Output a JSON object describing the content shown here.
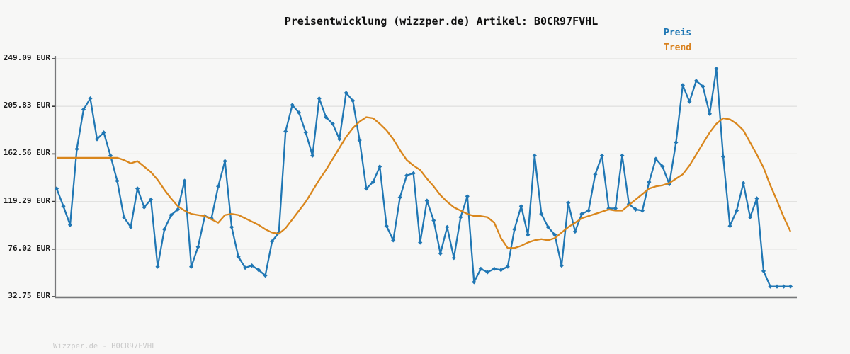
{
  "title": "Preisentwicklung (wizzper.de) Artikel: B0CR97FVHL",
  "watermark": "Wizzper.de - B0CR97FVHL",
  "legend": [
    {
      "label": "Preis",
      "color": "#1f77b4"
    },
    {
      "label": "Trend",
      "color": "#d9821f"
    }
  ],
  "colors": {
    "background": "#f7f7f6",
    "grid": "#e2e2e0",
    "axis": "#77787a",
    "tick": "#333333",
    "price_line": "#2077b4",
    "trend_line": "#d9861c",
    "title_text": "#111111",
    "watermark_text": "#c9c9c9"
  },
  "y_axis": {
    "unit": "EUR",
    "ticks": [
      249.09,
      205.83,
      162.56,
      119.29,
      76.02,
      32.75
    ],
    "labels": [
      "249.09 EUR",
      "205.83 EUR",
      "162.56 EUR",
      "119.29 EUR",
      "76.02 EUR",
      "32.75 EUR"
    ]
  },
  "x_axis": {
    "labels_shown": false
  },
  "chart_data": {
    "type": "line",
    "title": "Preisentwicklung (wizzper.de) Artikel: B0CR97FVHL",
    "xlabel": "",
    "ylabel": "EUR",
    "ylim": [
      32.75,
      249.09
    ],
    "grid": true,
    "legend_position": "top-right",
    "series": [
      {
        "name": "Preis",
        "color": "#2077b4",
        "marker": "diamond",
        "values": [
          131,
          115,
          98,
          167,
          203,
          213,
          176,
          182,
          161,
          138,
          105,
          96,
          131,
          114,
          121,
          60,
          94,
          107,
          112,
          138,
          60,
          78,
          106,
          104,
          133,
          156,
          96,
          69,
          59,
          61,
          57,
          52,
          83,
          91,
          183,
          207,
          200,
          182,
          161,
          213,
          196,
          190,
          176,
          218,
          211,
          175,
          131,
          137,
          151,
          97,
          84,
          123,
          143,
          145,
          82,
          120,
          102,
          72,
          96,
          68,
          105,
          124,
          46,
          58,
          55,
          58,
          57,
          60,
          94,
          115,
          89,
          161,
          108,
          96,
          89,
          61,
          118,
          92,
          108,
          111,
          144,
          161,
          113,
          113,
          161,
          117,
          112,
          111,
          137,
          158,
          151,
          135,
          173,
          225,
          210,
          229,
          224,
          199,
          240,
          160,
          97,
          111,
          136,
          105,
          122,
          56,
          42,
          42,
          42,
          42
        ]
      },
      {
        "name": "Trend",
        "color": "#d9861c",
        "marker": "none",
        "values": [
          159,
          159,
          159,
          159,
          159,
          159,
          159,
          159,
          159,
          159,
          157,
          154,
          156,
          151,
          146,
          139,
          130,
          122,
          115,
          111,
          108,
          107,
          106,
          103,
          100,
          107,
          108,
          107,
          104,
          101,
          98,
          94,
          91,
          90,
          95,
          103,
          111,
          119,
          129,
          139,
          148,
          158,
          168,
          178,
          186,
          192,
          196,
          195,
          190,
          184,
          176,
          166,
          157,
          152,
          148,
          140,
          133,
          125,
          119,
          114,
          111,
          108,
          106,
          106,
          105,
          100,
          86,
          77,
          77,
          79,
          82,
          84,
          85,
          84,
          86,
          91,
          96,
          100,
          104,
          106,
          108,
          110,
          112,
          111,
          111,
          116,
          121,
          126,
          131,
          133,
          134,
          136,
          140,
          144,
          152,
          162,
          172,
          182,
          190,
          195,
          194,
          190,
          184,
          173,
          162,
          150,
          134,
          120,
          105,
          92
        ]
      }
    ]
  }
}
